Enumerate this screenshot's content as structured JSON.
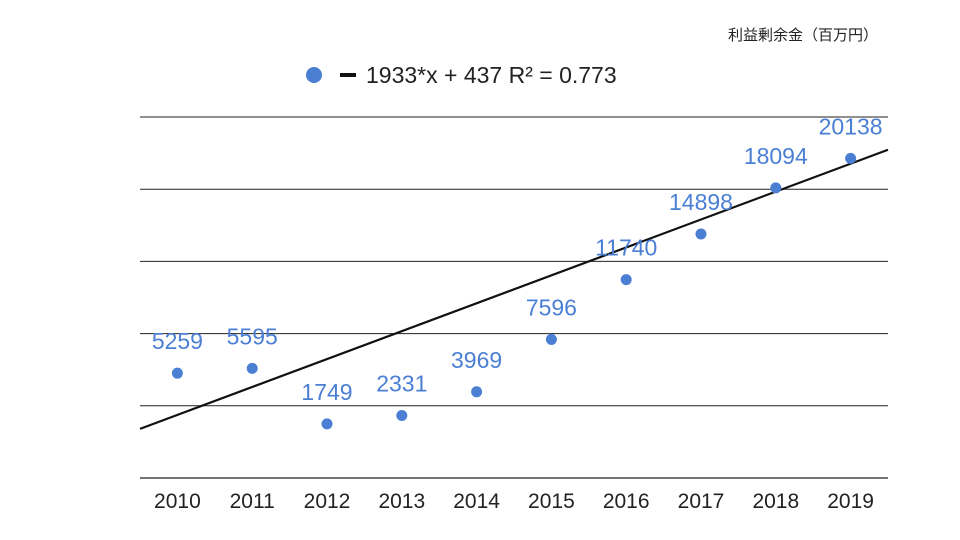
{
  "chart_data": {
    "type": "scatter",
    "unit_label": "利益剰余金（百万円）",
    "legend": {
      "point_color": "#4a7fd4",
      "line_color": "#111111",
      "trendline_label": "1933*x + 437 R² = 0.773"
    },
    "categories": [
      "2010",
      "2011",
      "2012",
      "2013",
      "2014",
      "2015",
      "2016",
      "2017",
      "2018",
      "2019"
    ],
    "values": [
      5259,
      5595,
      1749,
      2331,
      3969,
      7596,
      11740,
      14898,
      18094,
      20138
    ],
    "data_labels": [
      "5259",
      "5595",
      "1749",
      "2331",
      "3969",
      "7596",
      "11740",
      "14898",
      "18094",
      "20138"
    ],
    "trendline": {
      "slope": 1933,
      "intercept": 437
    },
    "ylim": [
      -2000,
      23000
    ],
    "gridlines": [
      3000,
      8000,
      13000,
      18000,
      23000
    ],
    "grid": true,
    "legend_position": "top"
  }
}
